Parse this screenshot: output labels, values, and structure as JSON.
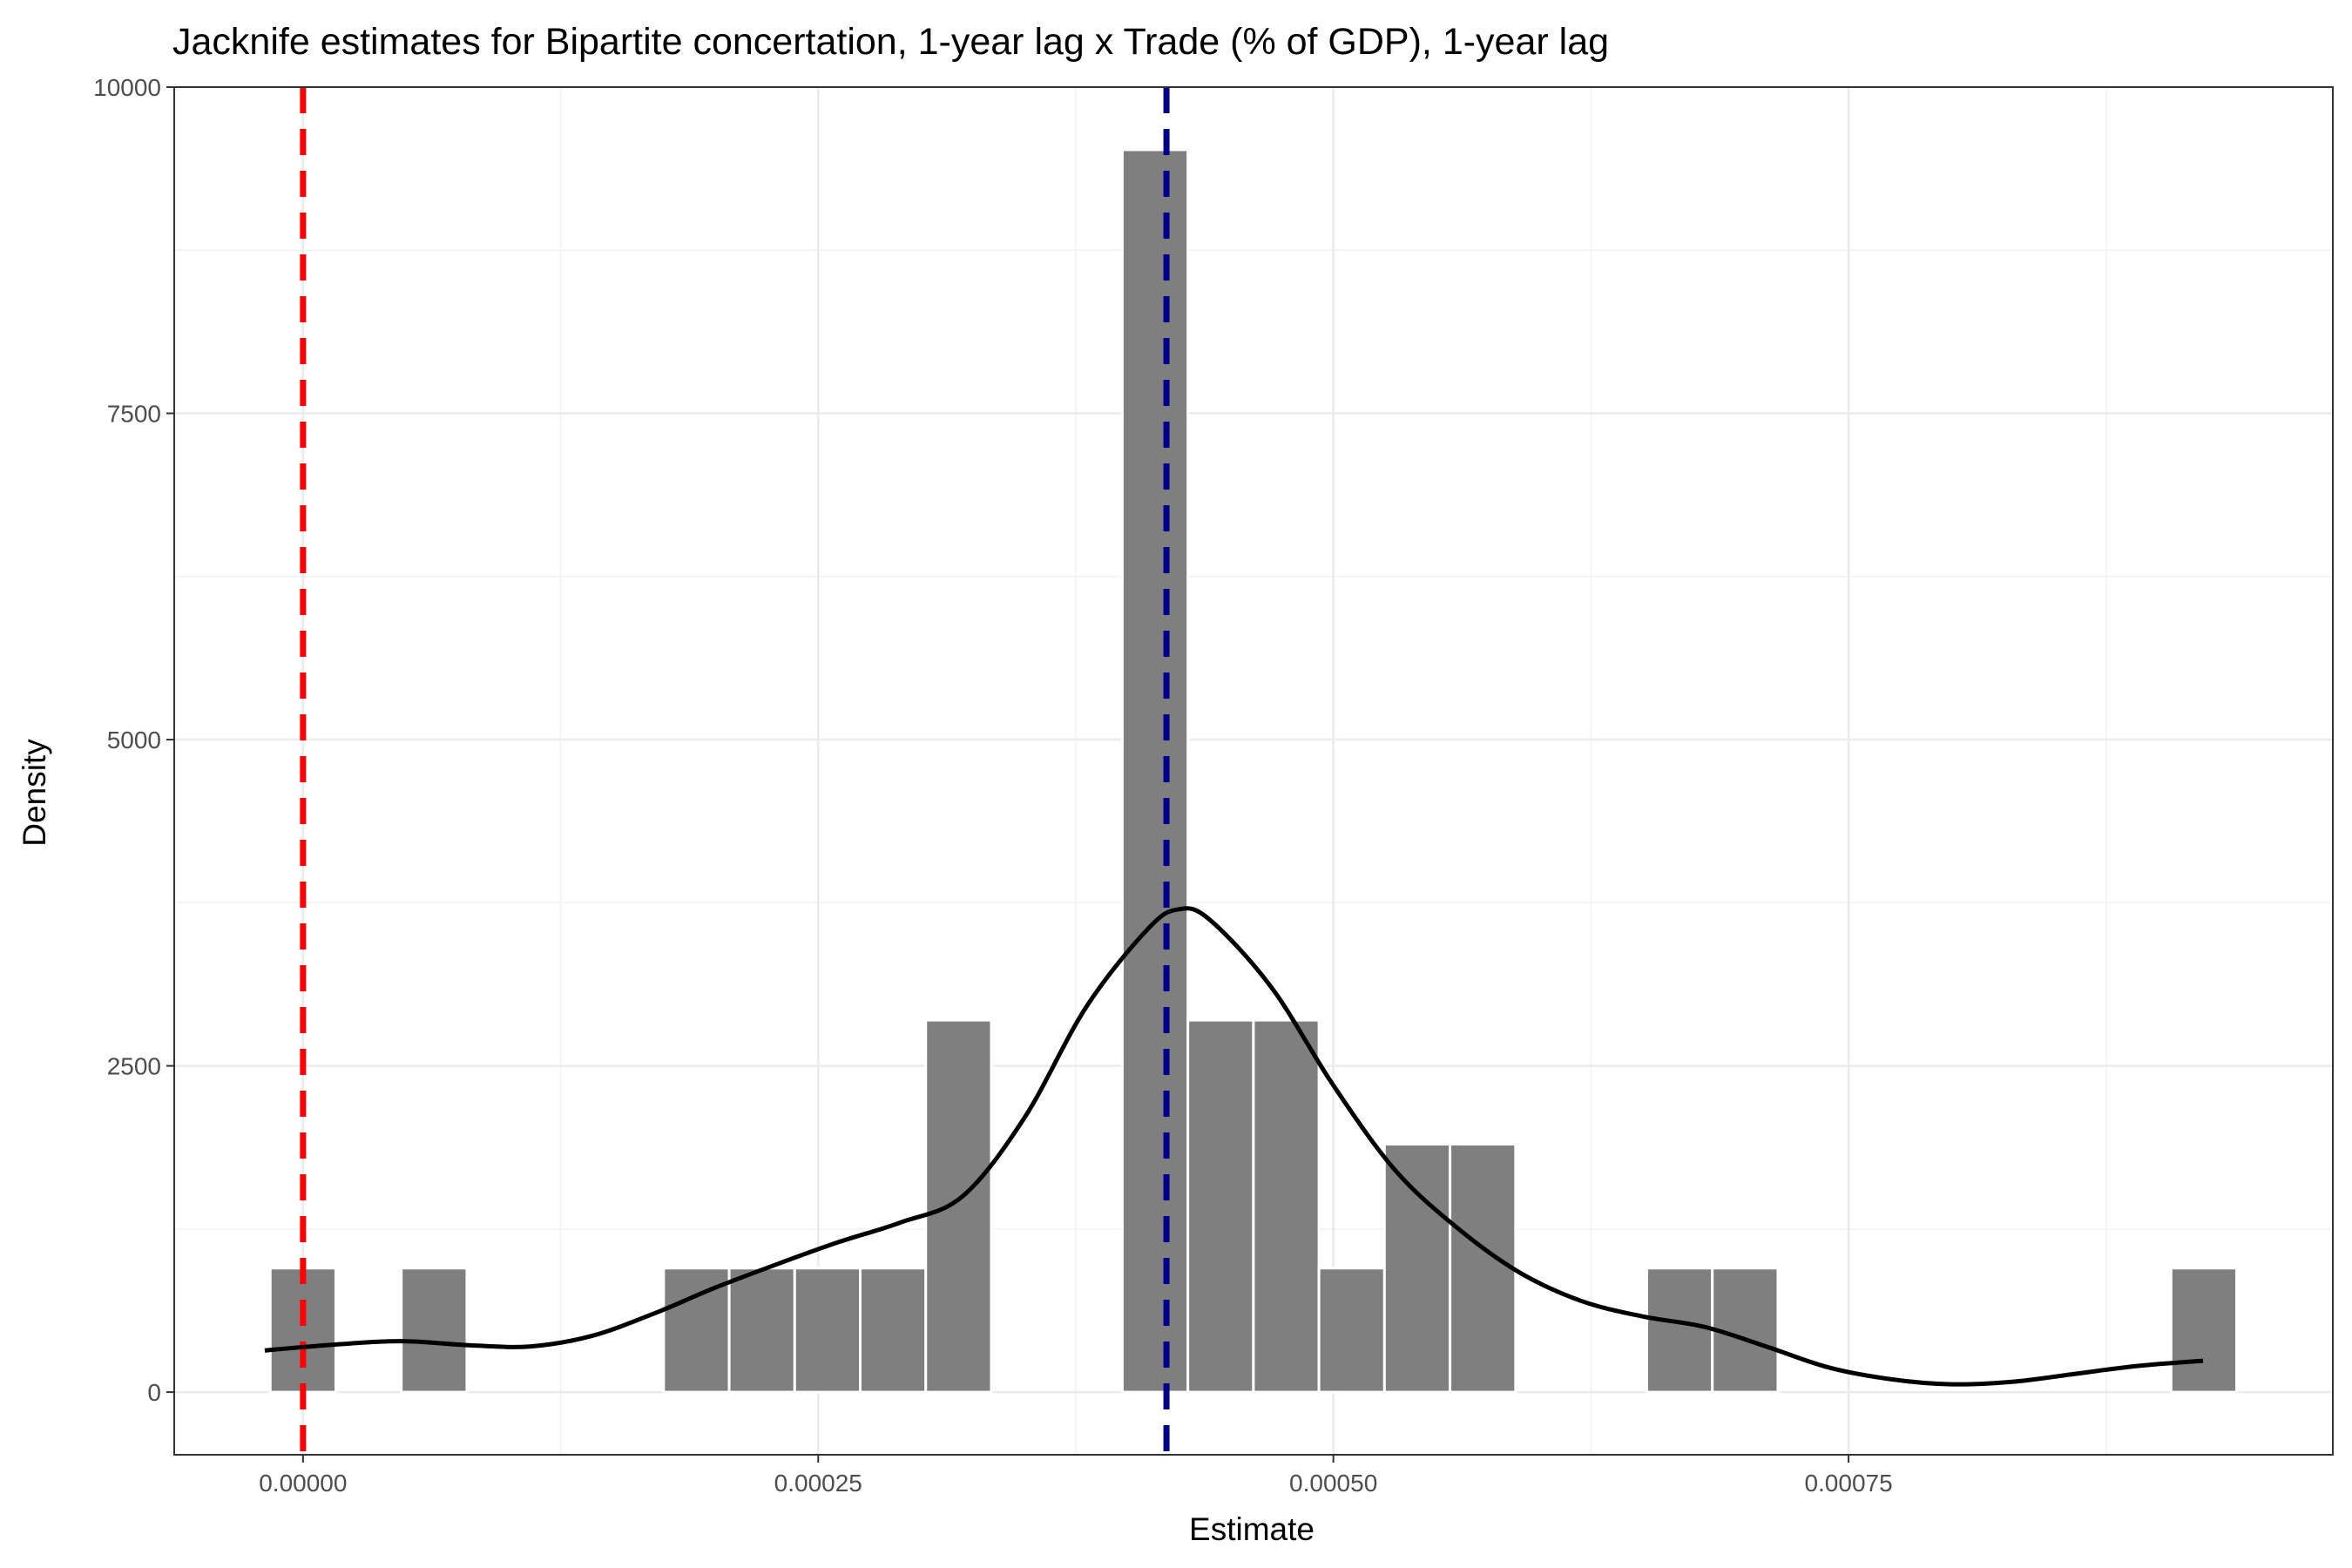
{
  "chart_data": {
    "type": "histogram",
    "title": "Jacknife estimates for Bipartite concertation, 1-year lag x Trade (% of GDP), 1-year lag",
    "xlabel": "Estimate",
    "ylabel": "Density",
    "xlim": [
      -6.25e-05,
      0.000985
    ],
    "ylim": [
      -480,
      10000
    ],
    "x_ticks": [
      0,
      0.00025,
      0.0005,
      0.00075
    ],
    "x_tick_labels": [
      "0.00000",
      "0.00025",
      "0.00050",
      "0.00075"
    ],
    "y_ticks": [
      0,
      2500,
      5000,
      7500,
      10000
    ],
    "y_tick_labels": [
      "0",
      "2500",
      "5000",
      "7500",
      "10000"
    ],
    "grid": true,
    "bin_width": 3.18e-05,
    "bins": [
      {
        "x0": -1.59e-05,
        "x1": 1.59e-05,
        "density": 950
      },
      {
        "x0": 4.77e-05,
        "x1": 7.95e-05,
        "density": 950
      },
      {
        "x0": 0.000175,
        "x1": 0.0002068,
        "density": 950
      },
      {
        "x0": 0.0002068,
        "x1": 0.0002386,
        "density": 950
      },
      {
        "x0": 0.0002386,
        "x1": 0.0002704,
        "density": 950
      },
      {
        "x0": 0.0002704,
        "x1": 0.0003022,
        "density": 950
      },
      {
        "x0": 0.0003022,
        "x1": 0.000334,
        "density": 2850
      },
      {
        "x0": 0.0003976,
        "x1": 0.0004294,
        "density": 9520
      },
      {
        "x0": 0.0004294,
        "x1": 0.0004612,
        "density": 2850
      },
      {
        "x0": 0.0004612,
        "x1": 0.000493,
        "density": 2850
      },
      {
        "x0": 0.000493,
        "x1": 0.0005248,
        "density": 950
      },
      {
        "x0": 0.0005248,
        "x1": 0.0005566,
        "density": 1900
      },
      {
        "x0": 0.0005566,
        "x1": 0.0005884,
        "density": 1900
      },
      {
        "x0": 0.0006521,
        "x1": 0.0006839,
        "density": 950
      },
      {
        "x0": 0.0006839,
        "x1": 0.0007157,
        "density": 950
      },
      {
        "x0": 0.0009065,
        "x1": 0.0009383,
        "density": 950
      }
    ],
    "density_curve": {
      "x": [
        -1.86e-05,
        2e-05,
        5e-05,
        8e-05,
        0.00011,
        0.00014,
        0.00017,
        0.0002,
        0.00023,
        0.00026,
        0.00029,
        0.00032,
        0.00035,
        0.00038,
        0.00041,
        0.000425,
        0.00044,
        0.00047,
        0.0005,
        0.00053,
        0.00056,
        0.00059,
        0.00062,
        0.00065,
        0.00068,
        0.00071,
        0.00074,
        0.00077,
        0.0008,
        0.00083,
        0.00086,
        0.00089,
        0.000922
      ],
      "y": [
        320,
        370,
        390,
        360,
        350,
        430,
        600,
        800,
        980,
        1150,
        1300,
        1500,
        2100,
        2950,
        3550,
        3700,
        3620,
        3100,
        2350,
        1700,
        1260,
        920,
        700,
        580,
        500,
        350,
        190,
        100,
        60,
        80,
        140,
        200,
        240
      ]
    },
    "reference_lines": [
      {
        "x": 0,
        "color": "#ff0000",
        "style": "dashed"
      },
      {
        "x": 0.000419,
        "color": "#00008b",
        "style": "dashed"
      }
    ],
    "bar_color": "#7f7f7f",
    "curve_color": "#000000"
  }
}
